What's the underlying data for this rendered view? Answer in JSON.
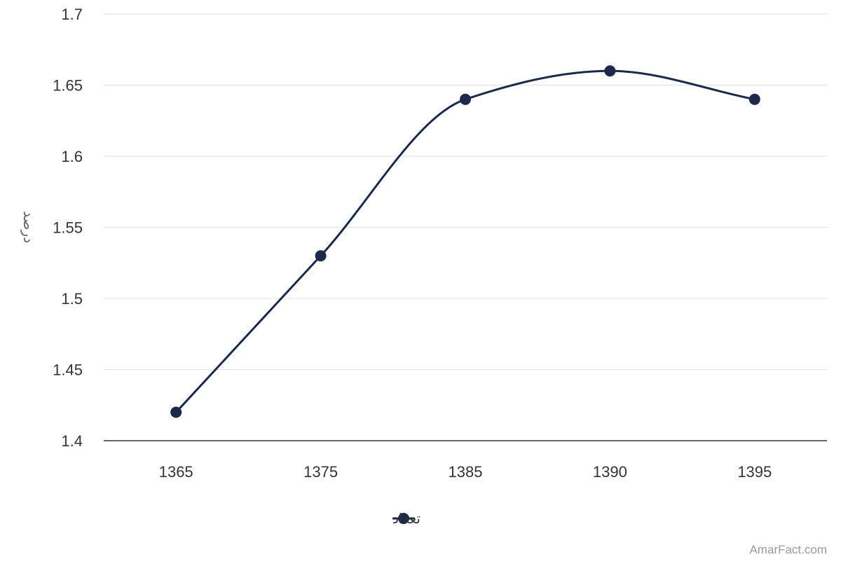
{
  "chart_data": {
    "type": "line",
    "categories": [
      "1365",
      "1375",
      "1385",
      "1390",
      "1395"
    ],
    "series": [
      {
        "name": "تعداد",
        "values": [
          1.42,
          1.53,
          1.64,
          1.66,
          1.64
        ],
        "color": "#1b2a4a"
      }
    ],
    "ylabel": "درصد",
    "xlabel": "",
    "ylim": [
      1.4,
      1.7
    ],
    "yticks": [
      "1.4",
      "1.45",
      "1.5",
      "1.55",
      "1.6",
      "1.65",
      "1.7"
    ],
    "grid": true,
    "legend_position": "bottom",
    "smooth": true
  },
  "credit": "AmarFact.com"
}
